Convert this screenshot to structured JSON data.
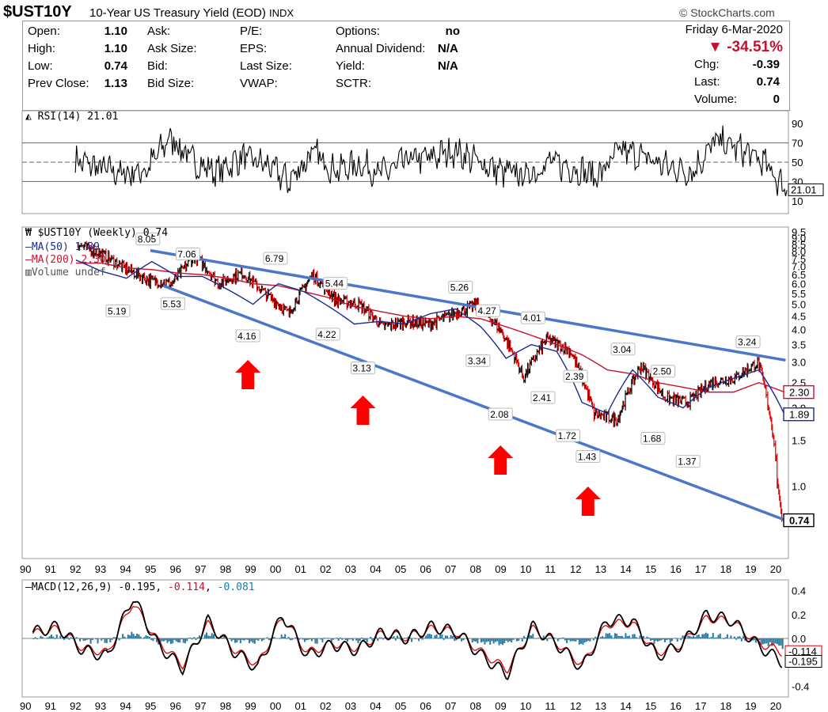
{
  "header": {
    "symbol": "$UST10Y",
    "description": "10-Year US Treasury Yield (EOD)",
    "exchange": "INDX",
    "credit": "© StockCharts.com",
    "date": "Friday  6-Mar-2020",
    "pct_change": "▼ -34.51%",
    "quote": [
      {
        "label": "Open:",
        "value": "1.10"
      },
      {
        "label": "High:",
        "value": "1.10"
      },
      {
        "label": "Low:",
        "value": "0.74"
      },
      {
        "label": "Prev Close:",
        "value": "1.13"
      }
    ],
    "ask": [
      {
        "label": "Ask:"
      },
      {
        "label": "Ask Size:"
      },
      {
        "label": "Bid:"
      },
      {
        "label": "Bid Size:"
      }
    ],
    "fundamentals": [
      {
        "label": "P/E:"
      },
      {
        "label": "EPS:"
      },
      {
        "label": "Last Size:"
      },
      {
        "label": "VWAP:"
      }
    ],
    "other": [
      {
        "label": "Options:",
        "value": "no"
      },
      {
        "label": "Annual Dividend:",
        "value": "N/A"
      },
      {
        "label": "Yield:",
        "value": "N/A"
      },
      {
        "label": "SCTR:",
        "value": ""
      }
    ],
    "summary": [
      {
        "label": "Chg:",
        "value": "-0.39"
      },
      {
        "label": "Last:",
        "value": "0.74"
      },
      {
        "label": "Volume:",
        "value": "0"
      }
    ]
  },
  "colors": {
    "ma50": "#1a2c8f",
    "ma200": "#c8102e",
    "trendline": "#4a77c9",
    "arrow": "#ff0000",
    "macd_hist": "#2a7aa0"
  },
  "chart_data": [
    {
      "type": "line",
      "title": "RSI(14) 21.01",
      "legend": [
        "RSI(14) 21.01"
      ],
      "ylim": [
        0,
        100
      ],
      "yticks": [
        90,
        70,
        50,
        30,
        10
      ],
      "reference_lines": [
        70,
        50,
        30
      ],
      "last_value": "21.01",
      "x": [
        "90",
        "91",
        "92",
        "93",
        "94",
        "95",
        "96",
        "97",
        "98",
        "99",
        "00",
        "01",
        "02",
        "03",
        "04",
        "05",
        "06",
        "07",
        "08",
        "09",
        "10",
        "11",
        "12",
        "13",
        "14",
        "15",
        "16",
        "17",
        "18",
        "19",
        "20"
      ],
      "series": [
        {
          "name": "RSI(14)",
          "values": [
            52,
            44,
            38,
            42,
            76,
            50,
            40,
            55,
            48,
            30,
            60,
            42,
            48,
            38,
            52,
            55,
            62,
            50,
            40,
            36,
            50,
            44,
            35,
            62,
            55,
            45,
            40,
            72,
            64,
            50,
            21
          ]
        }
      ]
    },
    {
      "type": "line",
      "title": "$UST10Y (Weekly) 0.74",
      "legend": [
        "$UST10Y (Weekly) 0.74",
        "MA(50) 1.89",
        "MA(200) 2.30",
        "Volume undef"
      ],
      "ylim": [
        0.55,
        9.5
      ],
      "scale": "log",
      "yticks": [
        "9.5",
        "9.0",
        "8.5",
        "8.0",
        "7.5",
        "7.0",
        "6.5",
        "6.0",
        "5.5",
        "5.0",
        "4.5",
        "4.0",
        "3.5",
        "3.0",
        "2.5",
        "2.0",
        "1.5",
        "1.0"
      ],
      "x": [
        "90",
        "91",
        "92",
        "93",
        "94",
        "95",
        "96",
        "97",
        "98",
        "99",
        "00",
        "01",
        "02",
        "03",
        "04",
        "05",
        "06",
        "07",
        "08",
        "09",
        "10",
        "11",
        "12",
        "13",
        "14",
        "15",
        "16",
        "17",
        "18",
        "19",
        "20"
      ],
      "series": [
        {
          "name": "$UST10Y",
          "values": [
            8.5,
            7.8,
            6.9,
            6.2,
            6.0,
            7.7,
            6.0,
            6.6,
            5.5,
            4.6,
            6.5,
            5.2,
            5.0,
            4.1,
            4.3,
            4.2,
            4.6,
            5.0,
            4.0,
            2.6,
            3.7,
            3.3,
            1.9,
            1.8,
            2.9,
            2.2,
            2.1,
            2.5,
            2.6,
            3.0,
            0.74
          ]
        },
        {
          "name": "MA(50)",
          "values": [
            null,
            null,
            7.4,
            6.7,
            6.3,
            7.3,
            6.4,
            6.4,
            5.7,
            5.0,
            6.0,
            5.6,
            4.9,
            4.2,
            4.3,
            4.2,
            4.6,
            4.8,
            4.1,
            3.1,
            3.5,
            3.3,
            2.1,
            1.9,
            2.8,
            2.2,
            2.0,
            2.4,
            2.6,
            2.8,
            1.89
          ]
        },
        {
          "name": "MA(200)",
          "values": [
            null,
            null,
            null,
            7.2,
            6.9,
            6.8,
            6.6,
            6.5,
            6.3,
            6.0,
            5.9,
            5.6,
            5.3,
            4.9,
            4.7,
            4.5,
            4.4,
            4.5,
            4.4,
            4.1,
            3.8,
            3.5,
            3.2,
            2.8,
            2.7,
            2.5,
            2.4,
            2.3,
            2.3,
            2.5,
            2.3
          ]
        }
      ],
      "annotations": [
        {
          "label": "8.05",
          "x": 1994.9,
          "y": 8.05
        },
        {
          "label": "7.06",
          "x": 1996.5,
          "y": 7.06
        },
        {
          "label": "6.79",
          "x": 2000.0,
          "y": 6.79
        },
        {
          "label": "5.44",
          "x": 2002.4,
          "y": 5.44
        },
        {
          "label": "5.26",
          "x": 2007.4,
          "y": 5.26
        },
        {
          "label": "4.27",
          "x": 2008.5,
          "y": 4.27
        },
        {
          "label": "4.01",
          "x": 2010.3,
          "y": 4.01
        },
        {
          "label": "3.04",
          "x": 2013.9,
          "y": 3.04
        },
        {
          "label": "2.50",
          "x": 2015.5,
          "y": 2.5
        },
        {
          "label": "3.24",
          "x": 2018.9,
          "y": 3.24
        },
        {
          "label": "5.19",
          "x": 1993.7,
          "y": 5.19
        },
        {
          "label": "5.53",
          "x": 1995.9,
          "y": 5.53
        },
        {
          "label": "4.16",
          "x": 1998.9,
          "y": 4.16
        },
        {
          "label": "4.22",
          "x": 2002.1,
          "y": 4.22
        },
        {
          "label": "3.13",
          "x": 2003.5,
          "y": 3.13
        },
        {
          "label": "3.34",
          "x": 2008.1,
          "y": 3.34
        },
        {
          "label": "2.08",
          "x": 2009.0,
          "y": 2.08
        },
        {
          "label": "2.41",
          "x": 2010.7,
          "y": 2.41
        },
        {
          "label": "2.39",
          "x": 2012.0,
          "y": 2.39
        },
        {
          "label": "1.72",
          "x": 2011.7,
          "y": 1.72
        },
        {
          "label": "1.43",
          "x": 2012.5,
          "y": 1.43
        },
        {
          "label": "1.68",
          "x": 2015.1,
          "y": 1.68
        },
        {
          "label": "1.37",
          "x": 2016.5,
          "y": 1.37
        }
      ],
      "trendlines": [
        {
          "name": "upper",
          "from": {
            "x": 1995.0,
            "y": 8.05
          },
          "to": {
            "x": 2020.4,
            "y": 3.05
          }
        },
        {
          "name": "lower",
          "from": {
            "x": 1995.5,
            "y": 5.9
          },
          "to": {
            "x": 2020.4,
            "y": 0.74
          }
        }
      ],
      "arrows_at": [
        1998.9,
        2003.5,
        2009.0,
        2012.5
      ],
      "last_values": {
        "price": "0.74",
        "ma50": "1.89",
        "ma200": "2.30"
      }
    },
    {
      "type": "line",
      "title": "MACD(12,26,9) -0.195, -0.114, -0.081",
      "legend_values": {
        "macd": "-0.195",
        "signal": "-0.114",
        "hist": "-0.081"
      },
      "legend_label": "MACD(12,26,9)",
      "ylim": [
        -0.45,
        0.45
      ],
      "yticks": [
        "0.4",
        "0.2",
        "0.0",
        "-0.2",
        "-0.4"
      ],
      "x": [
        "90",
        "91",
        "92",
        "93",
        "94",
        "95",
        "96",
        "97",
        "98",
        "99",
        "00",
        "01",
        "02",
        "03",
        "04",
        "05",
        "06",
        "07",
        "08",
        "09",
        "10",
        "11",
        "12",
        "13",
        "14",
        "15",
        "16",
        "17",
        "18",
        "19",
        "20"
      ],
      "series": [
        {
          "name": "MACD",
          "values": [
            0.05,
            0.1,
            -0.1,
            -0.15,
            0.35,
            -0.05,
            -0.25,
            0.15,
            -0.1,
            -0.25,
            0.2,
            -0.15,
            -0.05,
            -0.1,
            0.05,
            0.0,
            0.1,
            0.05,
            -0.15,
            -0.3,
            0.1,
            -0.05,
            -0.25,
            0.15,
            0.15,
            -0.15,
            -0.05,
            0.2,
            0.15,
            -0.05,
            -0.195
          ]
        },
        {
          "name": "Signal",
          "values": [
            0.04,
            0.08,
            -0.08,
            -0.12,
            0.3,
            -0.02,
            -0.22,
            0.12,
            -0.08,
            -0.22,
            0.18,
            -0.12,
            -0.04,
            -0.08,
            0.04,
            0.01,
            0.08,
            0.05,
            -0.12,
            -0.26,
            0.08,
            -0.04,
            -0.22,
            0.12,
            0.13,
            -0.12,
            -0.05,
            0.17,
            0.14,
            -0.03,
            -0.114
          ]
        },
        {
          "name": "Histogram",
          "values": [
            0.01,
            0.02,
            -0.02,
            -0.03,
            0.05,
            -0.03,
            -0.03,
            0.03,
            -0.02,
            -0.03,
            0.02,
            -0.03,
            -0.01,
            -0.02,
            0.01,
            -0.01,
            0.02,
            0.0,
            -0.03,
            -0.04,
            0.02,
            -0.01,
            -0.03,
            0.03,
            0.02,
            -0.03,
            0.0,
            0.03,
            0.01,
            -0.02,
            -0.081
          ]
        }
      ],
      "last_values": [
        "-0.114",
        "-0.195"
      ]
    }
  ]
}
